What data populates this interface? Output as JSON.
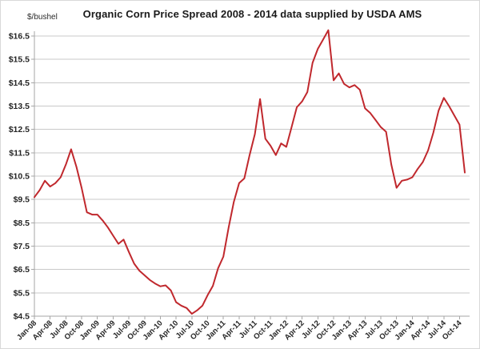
{
  "title": "Organic Corn Price Spread 2008 - 2014 data supplied by USDA AMS",
  "y_unit_label": "$/bushel",
  "chart_data": {
    "type": "line",
    "title": "Organic Corn Price Spread 2008 - 2014 data supplied by USDA AMS",
    "xlabel": "",
    "ylabel": "$/bushel",
    "ylim": [
      4.5,
      16.5
    ],
    "y_tick_step": 1,
    "y_tick_labels": [
      "$4.5",
      "$5.5",
      "$6.5",
      "$7.5",
      "$8.5",
      "$9.5",
      "$10.5",
      "$11.5",
      "$12.5",
      "$13.5",
      "$14.5",
      "$15.5",
      "$16.5"
    ],
    "x_tick_labels": [
      "Jan-08",
      "Apr-08",
      "Jul-08",
      "Oct-08",
      "Jan-09",
      "Apr-09",
      "Jul-09",
      "Oct-09",
      "Jan-10",
      "Apr-10",
      "Jul-10",
      "Oct-10",
      "Jan-11",
      "Apr-11",
      "Jul-11",
      "Oct-11",
      "Jan-12",
      "Apr-12",
      "Jul-12",
      "Oct-12",
      "Jan-13",
      "Apr-13",
      "Jul-13",
      "Oct-13",
      "Jan-14",
      "Apr-14",
      "Jul-14",
      "Oct-14"
    ],
    "grid": "horizontal",
    "legend": "none",
    "line_color": "#c0282d",
    "line_width": 2,
    "series": [
      {
        "name": "Organic corn price spread ($/bushel)",
        "x": [
          "Jan-08",
          "Feb-08",
          "Mar-08",
          "Apr-08",
          "May-08",
          "Jun-08",
          "Jul-08",
          "Aug-08",
          "Sep-08",
          "Oct-08",
          "Nov-08",
          "Dec-08",
          "Jan-09",
          "Feb-09",
          "Mar-09",
          "Apr-09",
          "May-09",
          "Jun-09",
          "Jul-09",
          "Aug-09",
          "Sep-09",
          "Oct-09",
          "Nov-09",
          "Dec-09",
          "Jan-10",
          "Feb-10",
          "Mar-10",
          "Apr-10",
          "May-10",
          "Jun-10",
          "Jul-10",
          "Aug-10",
          "Sep-10",
          "Oct-10",
          "Nov-10",
          "Dec-10",
          "Jan-11",
          "Feb-11",
          "Mar-11",
          "Apr-11",
          "May-11",
          "Jun-11",
          "Jul-11",
          "Aug-11",
          "Sep-11",
          "Oct-11",
          "Nov-11",
          "Dec-11",
          "Jan-12",
          "Feb-12",
          "Mar-12",
          "Apr-12",
          "May-12",
          "Jun-12",
          "Jul-12",
          "Aug-12",
          "Sep-12",
          "Oct-12",
          "Nov-12",
          "Dec-12",
          "Jan-13",
          "Feb-13",
          "Mar-13",
          "Apr-13",
          "May-13",
          "Jun-13",
          "Jul-13",
          "Aug-13",
          "Sep-13",
          "Oct-13",
          "Nov-13",
          "Dec-13",
          "Jan-14",
          "Feb-14",
          "Mar-14",
          "Apr-14",
          "May-14",
          "Jun-14",
          "Jul-14",
          "Aug-14",
          "Sep-14",
          "Oct-14",
          "Nov-14"
        ],
        "values": [
          9.6,
          9.9,
          10.3,
          10.05,
          10.2,
          10.45,
          11.0,
          11.65,
          10.9,
          10.0,
          8.95,
          8.85,
          8.85,
          8.6,
          8.3,
          7.95,
          7.6,
          7.78,
          7.25,
          6.75,
          6.45,
          6.25,
          6.05,
          5.9,
          5.78,
          5.82,
          5.6,
          5.1,
          4.95,
          4.85,
          4.6,
          4.75,
          4.95,
          5.4,
          5.8,
          6.55,
          7.05,
          8.3,
          9.4,
          10.2,
          10.4,
          11.4,
          12.3,
          13.8,
          12.1,
          11.8,
          11.4,
          11.9,
          11.75,
          12.6,
          13.45,
          13.7,
          14.1,
          15.35,
          15.95,
          16.35,
          16.75,
          14.6,
          14.9,
          14.45,
          14.3,
          14.4,
          14.2,
          13.4,
          13.2,
          12.9,
          12.6,
          12.4,
          11.0,
          10.0,
          10.3,
          10.35,
          10.45,
          10.8,
          11.1,
          11.6,
          12.35,
          13.3,
          13.85,
          13.5,
          13.1,
          12.7,
          10.65
        ]
      }
    ]
  }
}
